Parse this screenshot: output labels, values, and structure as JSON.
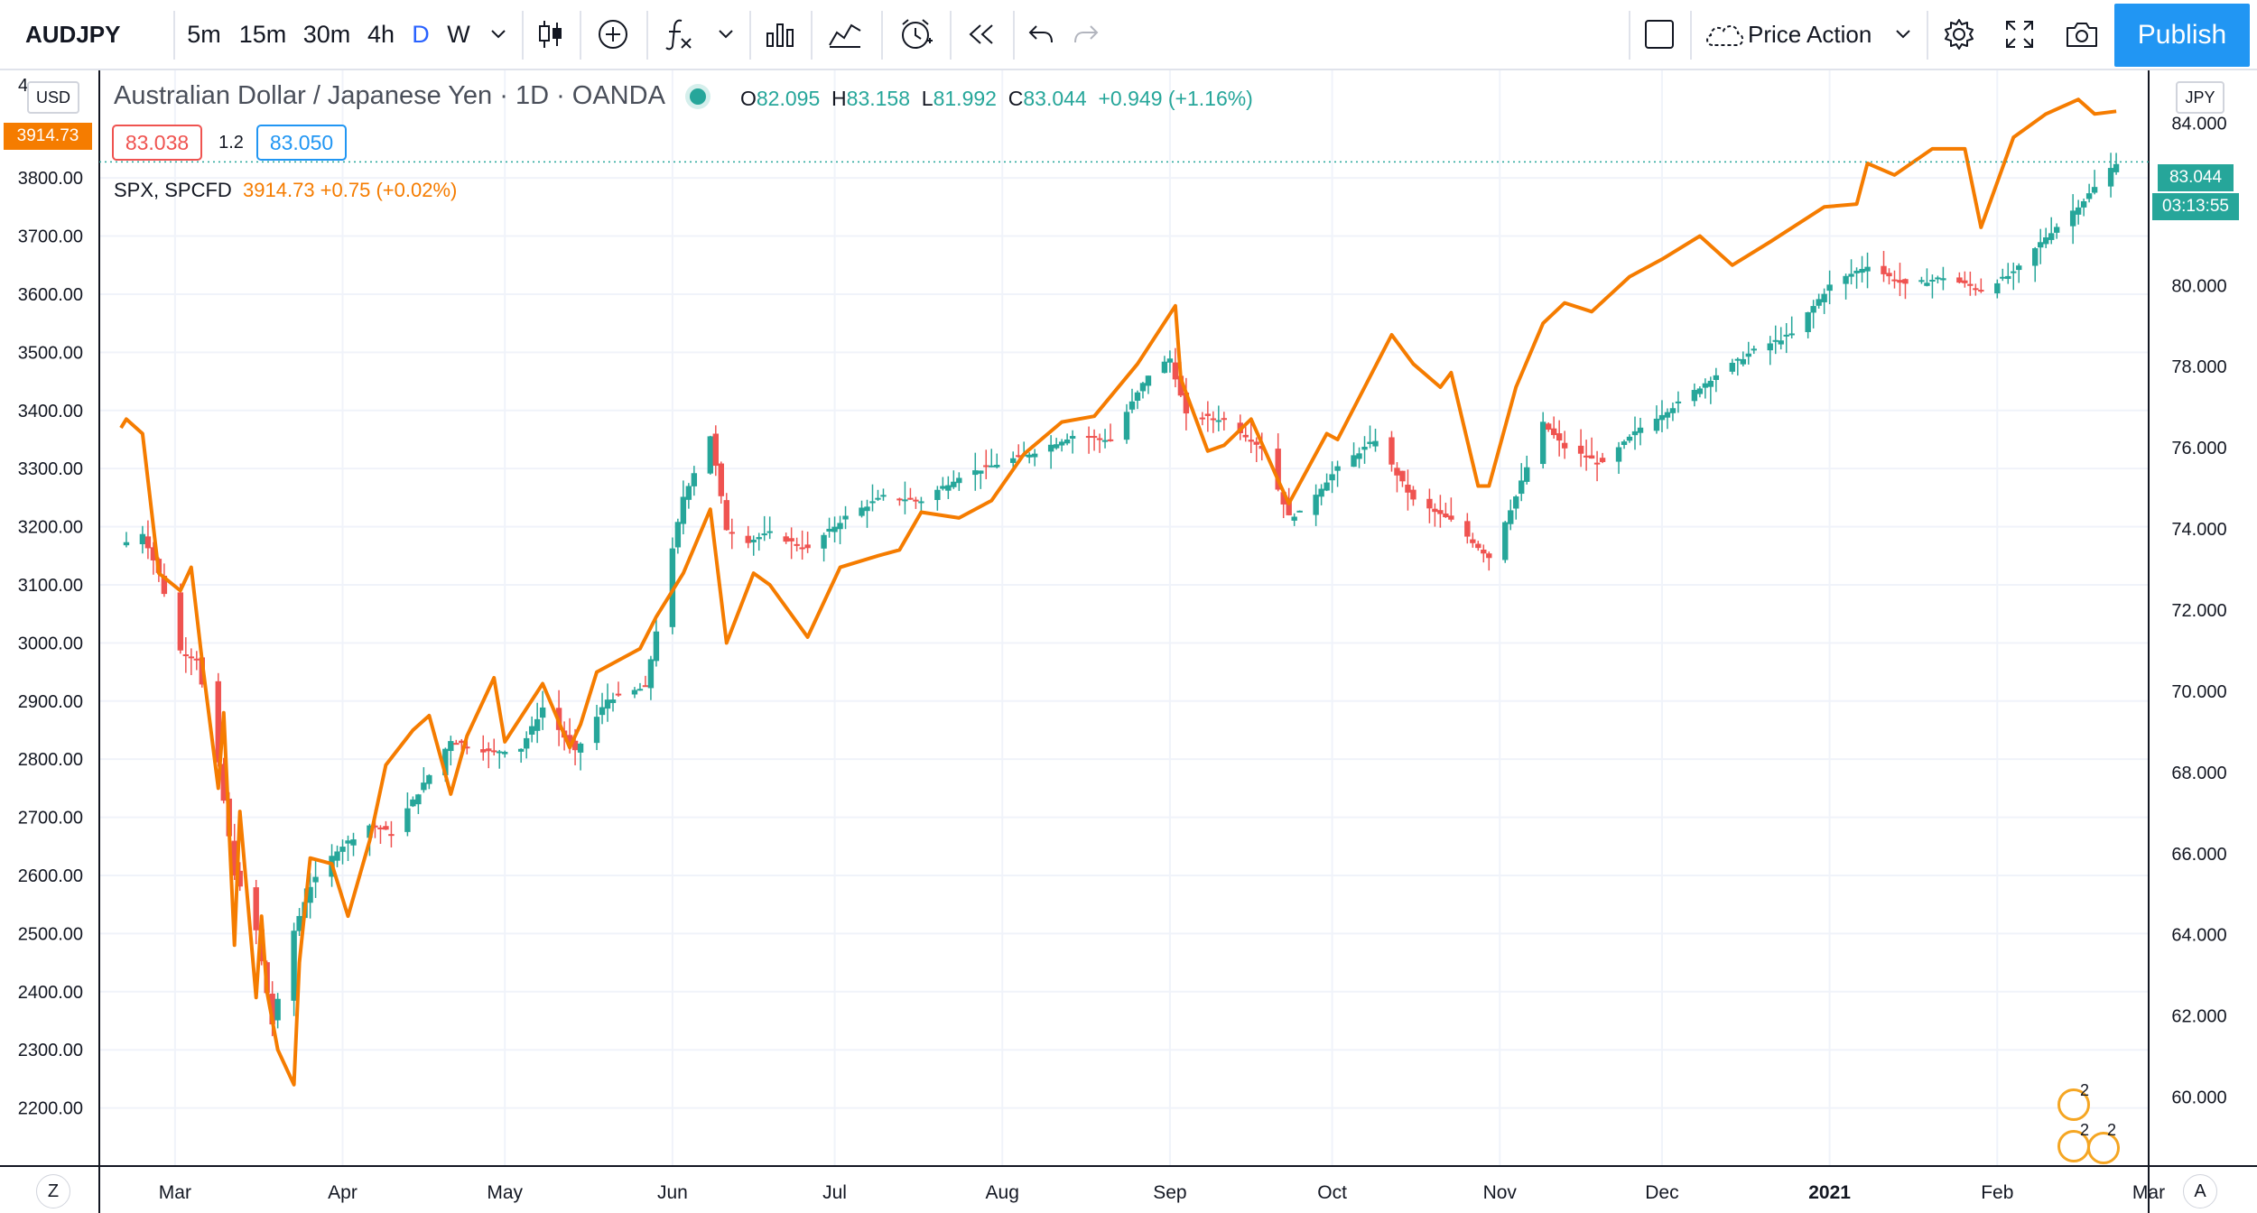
{
  "toolbar": {
    "symbol": "AUDJPY",
    "intervals": [
      "5m",
      "15m",
      "30m",
      "4h",
      "D",
      "W"
    ],
    "active_interval": "D",
    "template_name": "Price Action",
    "publish_label": "Publish"
  },
  "legend": {
    "title": "Australian Dollar / Japanese Yen · 1D · OANDA",
    "open_label": "O",
    "open": "82.095",
    "high_label": "H",
    "high": "83.158",
    "low_label": "L",
    "low": "81.992",
    "close_label": "C",
    "close": "83.044",
    "change": "+0.949 (+1.16%)",
    "bid": "83.038",
    "spread": "1.2",
    "ask": "83.050",
    "compare_symbol": "SPX, SPCFD",
    "compare_values": "3914.73 +0.75 (+0.02%)"
  },
  "axes": {
    "left_currency": "USD",
    "right_currency": "JPY",
    "left_top_partial": "4",
    "spx_last_tag": "3914.73",
    "aud_last_tag": "83.044",
    "countdown": "03:13:55",
    "zoom_button": "Z",
    "auto_button": "A"
  },
  "events": {
    "count_a": "2",
    "count_b": "2",
    "count_c": "2"
  },
  "colors": {
    "up": "#26a69a",
    "down": "#ef5350",
    "compare": "#f57c00",
    "accent": "#2196f3",
    "grid": "#f0f3fa"
  },
  "chart_data": {
    "type": "line",
    "title": "Australian Dollar / Japanese Yen · 1D · OANDA",
    "x_ticks": [
      "Mar",
      "Apr",
      "May",
      "Jun",
      "Jul",
      "Aug",
      "Sep",
      "Oct",
      "Nov",
      "Dec",
      "2021",
      "Feb",
      "Mar"
    ],
    "left_axis": {
      "label": "USD",
      "ticks": [
        2200,
        2300,
        2400,
        2500,
        2600,
        2700,
        2800,
        2900,
        3000,
        3100,
        3200,
        3300,
        3400,
        3500,
        3600,
        3700,
        3800
      ],
      "ylim": [
        2100,
        3985
      ]
    },
    "right_axis": {
      "label": "JPY",
      "ticks": [
        60,
        62,
        64,
        66,
        68,
        70,
        72,
        74,
        76,
        78,
        80,
        82,
        84
      ],
      "ylim": [
        58.3,
        85.3
      ]
    },
    "series": [
      {
        "name": "AUDJPY",
        "style": "candlestick",
        "axis": "right",
        "anchors_date_value": [
          [
            "2020-02-20",
            73.6
          ],
          [
            "2020-02-24",
            73.9
          ],
          [
            "2020-02-27",
            72.9
          ],
          [
            "2020-03-02",
            71.0
          ],
          [
            "2020-03-05",
            70.8
          ],
          [
            "2020-03-09",
            68.2
          ],
          [
            "2020-03-12",
            65.5
          ],
          [
            "2020-03-16",
            64.1
          ],
          [
            "2020-03-19",
            61.8
          ],
          [
            "2020-03-23",
            64.1
          ],
          [
            "2020-03-26",
            65.2
          ],
          [
            "2020-03-31",
            66.1
          ],
          [
            "2020-04-06",
            66.7
          ],
          [
            "2020-04-10",
            66.5
          ],
          [
            "2020-04-15",
            67.5
          ],
          [
            "2020-04-21",
            68.8
          ],
          [
            "2020-04-28",
            68.5
          ],
          [
            "2020-05-04",
            68.6
          ],
          [
            "2020-05-08",
            69.6
          ],
          [
            "2020-05-14",
            68.5
          ],
          [
            "2020-05-20",
            69.8
          ],
          [
            "2020-05-27",
            70.1
          ],
          [
            "2020-05-29",
            71.5
          ],
          [
            "2020-06-03",
            74.8
          ],
          [
            "2020-06-08",
            76.3
          ],
          [
            "2020-06-11",
            74.0
          ],
          [
            "2020-06-15",
            73.7
          ],
          [
            "2020-06-19",
            73.9
          ],
          [
            "2020-06-26",
            73.5
          ],
          [
            "2020-07-03",
            74.3
          ],
          [
            "2020-07-10",
            74.8
          ],
          [
            "2020-07-17",
            74.7
          ],
          [
            "2020-07-24",
            75.3
          ],
          [
            "2020-07-31",
            75.6
          ],
          [
            "2020-08-07",
            75.9
          ],
          [
            "2020-08-14",
            76.3
          ],
          [
            "2020-08-21",
            76.2
          ],
          [
            "2020-08-28",
            77.8
          ],
          [
            "2020-09-01",
            78.2
          ],
          [
            "2020-09-04",
            76.8
          ],
          [
            "2020-09-11",
            76.7
          ],
          [
            "2020-09-18",
            76.0
          ],
          [
            "2020-09-23",
            74.3
          ],
          [
            "2020-09-25",
            74.4
          ],
          [
            "2020-10-02",
            75.5
          ],
          [
            "2020-10-09",
            76.2
          ],
          [
            "2020-10-16",
            74.7
          ],
          [
            "2020-10-23",
            74.2
          ],
          [
            "2020-10-30",
            73.3
          ],
          [
            "2020-11-04",
            74.8
          ],
          [
            "2020-11-09",
            76.6
          ],
          [
            "2020-11-13",
            76.0
          ],
          [
            "2020-11-20",
            75.6
          ],
          [
            "2020-11-27",
            76.5
          ],
          [
            "2020-12-04",
            77.1
          ],
          [
            "2020-12-11",
            77.8
          ],
          [
            "2020-12-18",
            78.4
          ],
          [
            "2020-12-25",
            78.8
          ],
          [
            "2021-01-01",
            80.0
          ],
          [
            "2021-01-08",
            80.5
          ],
          [
            "2021-01-15",
            80.0
          ],
          [
            "2021-01-22",
            80.2
          ],
          [
            "2021-01-29",
            79.9
          ],
          [
            "2021-02-04",
            80.3
          ],
          [
            "2021-02-10",
            81.2
          ],
          [
            "2021-02-17",
            82.1
          ],
          [
            "2021-02-23",
            83.04
          ]
        ]
      },
      {
        "name": "SPX, SPCFD",
        "style": "line",
        "axis": "left",
        "anchors_date_value": [
          [
            "2020-02-20",
            3370
          ],
          [
            "2020-02-21",
            3385
          ],
          [
            "2020-02-24",
            3360
          ],
          [
            "2020-02-27",
            3120
          ],
          [
            "2020-03-02",
            3090
          ],
          [
            "2020-03-04",
            3130
          ],
          [
            "2020-03-06",
            2970
          ],
          [
            "2020-03-09",
            2750
          ],
          [
            "2020-03-10",
            2880
          ],
          [
            "2020-03-12",
            2480
          ],
          [
            "2020-03-13",
            2710
          ],
          [
            "2020-03-16",
            2390
          ],
          [
            "2020-03-17",
            2530
          ],
          [
            "2020-03-18",
            2400
          ],
          [
            "2020-03-20",
            2300
          ],
          [
            "2020-03-23",
            2240
          ],
          [
            "2020-03-24",
            2450
          ],
          [
            "2020-03-26",
            2630
          ],
          [
            "2020-03-30",
            2620
          ],
          [
            "2020-04-02",
            2530
          ],
          [
            "2020-04-06",
            2660
          ],
          [
            "2020-04-09",
            2790
          ],
          [
            "2020-04-14",
            2850
          ],
          [
            "2020-04-17",
            2875
          ],
          [
            "2020-04-21",
            2740
          ],
          [
            "2020-04-24",
            2840
          ],
          [
            "2020-04-29",
            2940
          ],
          [
            "2020-05-01",
            2830
          ],
          [
            "2020-05-08",
            2930
          ],
          [
            "2020-05-13",
            2820
          ],
          [
            "2020-05-15",
            2860
          ],
          [
            "2020-05-18",
            2950
          ],
          [
            "2020-05-26",
            2990
          ],
          [
            "2020-05-29",
            3045
          ],
          [
            "2020-06-03",
            3120
          ],
          [
            "2020-06-08",
            3230
          ],
          [
            "2020-06-11",
            3000
          ],
          [
            "2020-06-16",
            3120
          ],
          [
            "2020-06-19",
            3100
          ],
          [
            "2020-06-26",
            3010
          ],
          [
            "2020-07-02",
            3130
          ],
          [
            "2020-07-09",
            3150
          ],
          [
            "2020-07-13",
            3160
          ],
          [
            "2020-07-17",
            3225
          ],
          [
            "2020-07-24",
            3215
          ],
          [
            "2020-07-30",
            3245
          ],
          [
            "2020-08-05",
            3325
          ],
          [
            "2020-08-12",
            3380
          ],
          [
            "2020-08-18",
            3390
          ],
          [
            "2020-08-26",
            3480
          ],
          [
            "2020-09-02",
            3580
          ],
          [
            "2020-09-03",
            3455
          ],
          [
            "2020-09-08",
            3330
          ],
          [
            "2020-09-11",
            3340
          ],
          [
            "2020-09-16",
            3385
          ],
          [
            "2020-09-21",
            3280
          ],
          [
            "2020-09-23",
            3240
          ],
          [
            "2020-09-30",
            3360
          ],
          [
            "2020-10-02",
            3350
          ],
          [
            "2020-10-12",
            3530
          ],
          [
            "2020-10-16",
            3480
          ],
          [
            "2020-10-21",
            3440
          ],
          [
            "2020-10-23",
            3465
          ],
          [
            "2020-10-28",
            3270
          ],
          [
            "2020-10-30",
            3270
          ],
          [
            "2020-11-04",
            3440
          ],
          [
            "2020-11-09",
            3550
          ],
          [
            "2020-11-13",
            3585
          ],
          [
            "2020-11-18",
            3570
          ],
          [
            "2020-11-25",
            3630
          ],
          [
            "2020-12-01",
            3660
          ],
          [
            "2020-12-08",
            3700
          ],
          [
            "2020-12-14",
            3650
          ],
          [
            "2020-12-21",
            3690
          ],
          [
            "2020-12-31",
            3750
          ],
          [
            "2021-01-06",
            3755
          ],
          [
            "2021-01-08",
            3825
          ],
          [
            "2021-01-13",
            3805
          ],
          [
            "2021-01-20",
            3850
          ],
          [
            "2021-01-26",
            3850
          ],
          [
            "2021-01-29",
            3715
          ],
          [
            "2021-02-04",
            3870
          ],
          [
            "2021-02-10",
            3910
          ],
          [
            "2021-02-16",
            3935
          ],
          [
            "2021-02-19",
            3910
          ],
          [
            "2021-02-23",
            3914.73
          ]
        ]
      }
    ]
  }
}
